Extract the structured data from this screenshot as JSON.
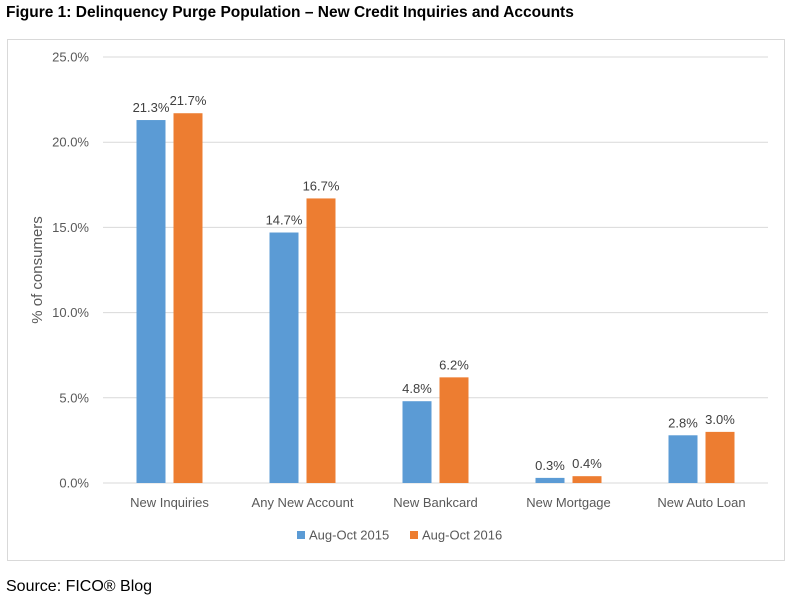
{
  "figure_title": "Figure 1: Delinquency Purge Population – New Credit Inquiries and Accounts",
  "source": "Source: FICO® Blog",
  "colors": {
    "series1": "#5b9bd5",
    "series2": "#ed7d31",
    "grid": "#d9d9d9",
    "text": "#595959",
    "label": "#404040"
  },
  "chart_data": {
    "type": "bar",
    "title": "Figure 1: Delinquency Purge Population – New Credit Inquiries and Accounts",
    "xlabel": "",
    "ylabel": "% of consumers",
    "ylim": [
      0,
      25
    ],
    "yticks": [
      0,
      5,
      10,
      15,
      20,
      25
    ],
    "ytick_labels": [
      "0.0%",
      "5.0%",
      "10.0%",
      "15.0%",
      "20.0%",
      "25.0%"
    ],
    "grid": true,
    "legend_position": "bottom",
    "categories": [
      "New Inquiries",
      "Any New Account",
      "New Bankcard",
      "New Mortgage",
      "New Auto Loan"
    ],
    "series": [
      {
        "name": "Aug-Oct 2015",
        "values": [
          21.3,
          14.7,
          4.8,
          0.3,
          2.8
        ],
        "labels": [
          "21.3%",
          "14.7%",
          "4.8%",
          "0.3%",
          "2.8%"
        ]
      },
      {
        "name": "Aug-Oct 2016",
        "values": [
          21.7,
          16.7,
          6.2,
          0.4,
          3.0
        ],
        "labels": [
          "21.7%",
          "16.7%",
          "6.2%",
          "0.4%",
          "3.0%"
        ]
      }
    ]
  }
}
